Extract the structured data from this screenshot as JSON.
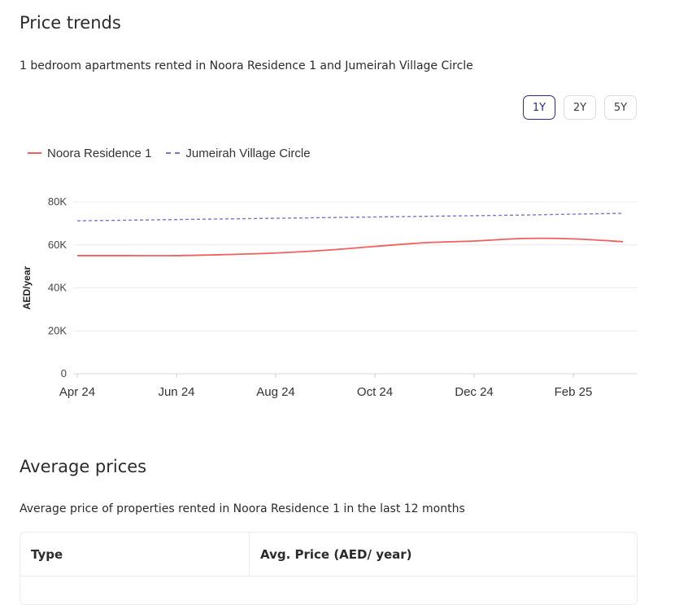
{
  "price_trends": {
    "title": "Price trends",
    "subtitle": "1 bedroom apartments rented in Noora Residence 1 and Jumeirah Village Circle",
    "ranges": [
      "1Y",
      "2Y",
      "5Y"
    ],
    "selected_range": "1Y"
  },
  "chart_data": {
    "type": "line",
    "ylabel": "AED/year",
    "ylim": [
      0,
      80000
    ],
    "y_ticks": [
      0,
      20000,
      40000,
      60000,
      80000
    ],
    "y_tick_labels": [
      "0",
      "20K",
      "40K",
      "60K",
      "80K"
    ],
    "x_ticks": [
      "Apr 24",
      "Jun 24",
      "Aug 24",
      "Oct 24",
      "Dec 24",
      "Feb 25"
    ],
    "x": [
      "Apr 24",
      "May 24",
      "Jun 24",
      "Jul 24",
      "Aug 24",
      "Sep 24",
      "Oct 24",
      "Nov 24",
      "Dec 24",
      "Jan 25",
      "Feb 25",
      "Mar 25"
    ],
    "grid": true,
    "legend_position": "top-left",
    "series": [
      {
        "name": "Noora Residence 1",
        "style": "solid",
        "color": "#f0605e",
        "values": [
          55000,
          55000,
          55000,
          55500,
          56200,
          57500,
          59300,
          61000,
          61800,
          63000,
          62800,
          61500
        ]
      },
      {
        "name": "Jumeirah Village Circle",
        "style": "dashed",
        "color": "#7d72d4",
        "values": [
          71200,
          71500,
          71800,
          72100,
          72400,
          72700,
          73000,
          73300,
          73600,
          73900,
          74300,
          74700
        ]
      }
    ]
  },
  "average_prices": {
    "title": "Average prices",
    "subtitle": "Average price of properties rented in Noora Residence 1 in the last 12 months",
    "columns": [
      "Type",
      "Avg. Price (AED/ year)"
    ]
  }
}
